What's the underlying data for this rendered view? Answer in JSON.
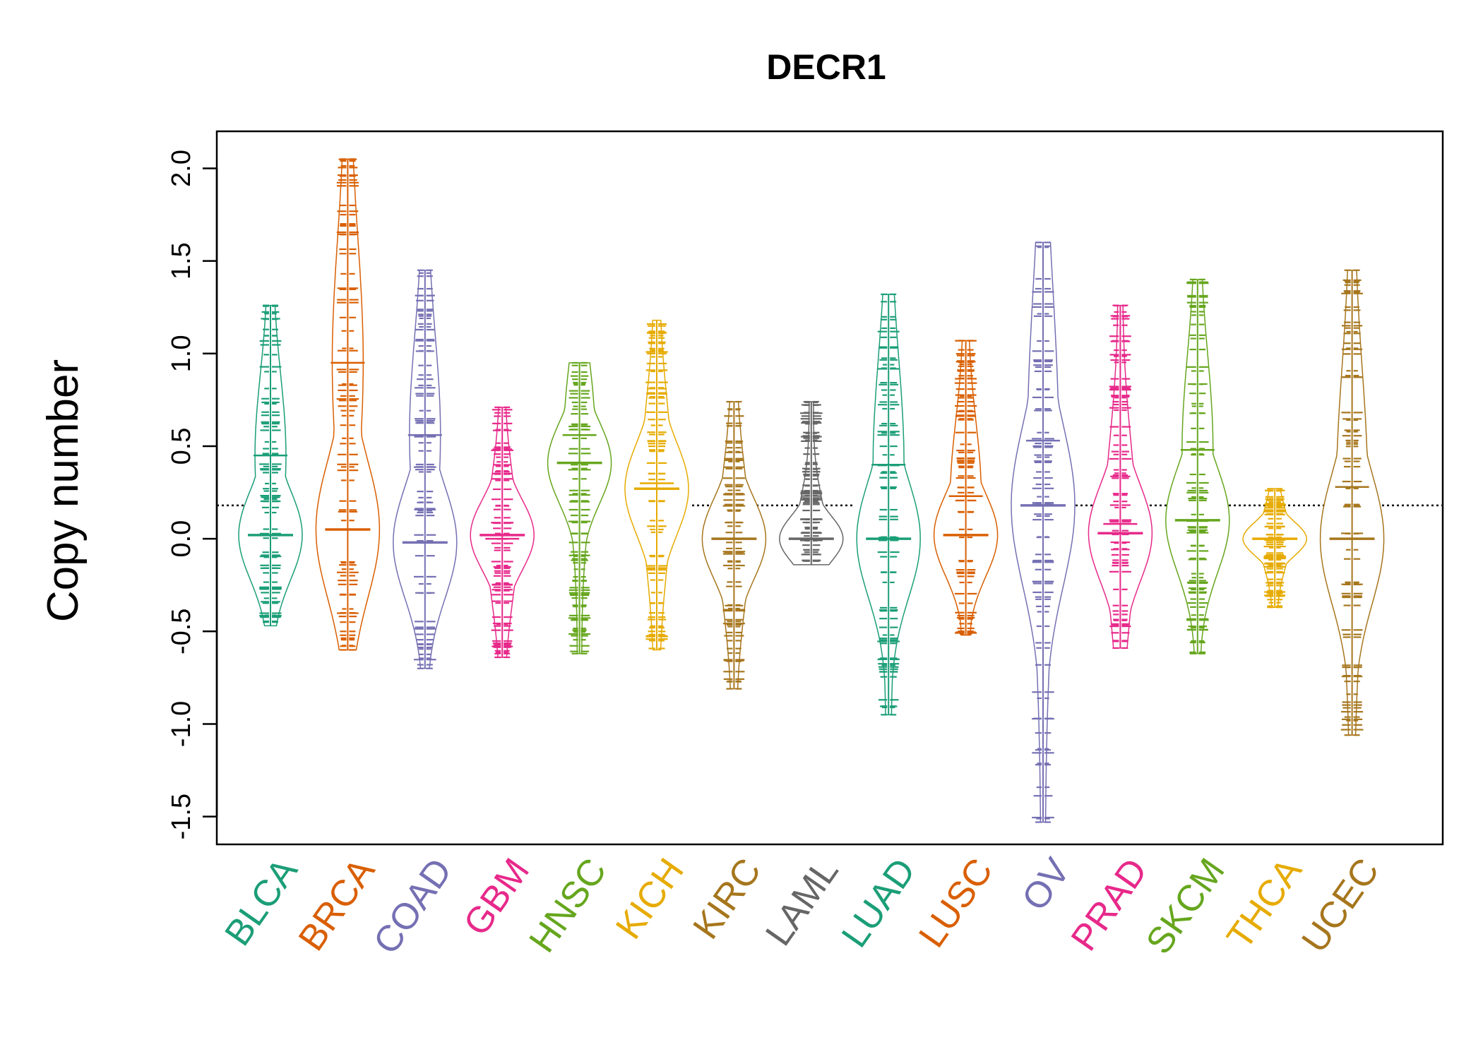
{
  "chart_data": {
    "type": "beanplot",
    "title": "DECR1",
    "xlabel": "",
    "ylabel": "Copy number",
    "ylim": [
      -1.65,
      2.2
    ],
    "yticks": [
      -1.5,
      -1.0,
      -0.5,
      0.0,
      0.5,
      1.0,
      1.5,
      2.0
    ],
    "ytick_labels": [
      "-1.5",
      "-1.0",
      "-0.5",
      "0.0",
      "0.5",
      "1.0",
      "1.5",
      "2.0"
    ],
    "reference_line": 0.18,
    "grid": false,
    "legend": "none",
    "categories": [
      {
        "name": "BLCA",
        "color": "#1B9E77",
        "min": -0.47,
        "max": 1.26,
        "median": 0.02,
        "mean": 0.45,
        "outliers": [
          1.26,
          1.13,
          -0.45
        ]
      },
      {
        "name": "BRCA",
        "color": "#D95F02",
        "min": -0.6,
        "max": 2.05,
        "median": 0.05,
        "mean": 0.95,
        "outliers": [
          2.05,
          2.04,
          1.8,
          1.75,
          1.7,
          -0.4,
          -0.45,
          -0.5,
          -0.58,
          -0.6
        ]
      },
      {
        "name": "COAD",
        "color": "#7570B3",
        "min": -0.7,
        "max": 1.45,
        "median": -0.02,
        "mean": 0.56,
        "outliers": [
          1.45,
          1.35,
          -0.68,
          -0.7
        ]
      },
      {
        "name": "GBM",
        "color": "#E7298A",
        "min": -0.64,
        "max": 0.71,
        "median": 0.02,
        "mean": 0.0,
        "outliers": [
          0.71,
          0.68,
          -0.62,
          -0.64
        ]
      },
      {
        "name": "HNSC",
        "color": "#66A61E",
        "min": -0.62,
        "max": 0.95,
        "median": 0.41,
        "mean": 0.56,
        "outliers": [
          0.95,
          0.9,
          -0.32,
          -0.62
        ]
      },
      {
        "name": "KICH",
        "color": "#E6AB02",
        "min": -0.6,
        "max": 1.18,
        "median": 0.27,
        "mean": 0.3,
        "outliers": [
          1.12,
          -0.4,
          -0.48,
          -0.55
        ]
      },
      {
        "name": "KIRC",
        "color": "#A6761D",
        "min": -0.81,
        "max": 0.74,
        "median": 0.0,
        "mean": 0.0,
        "outliers": [
          0.74,
          -0.81
        ]
      },
      {
        "name": "LAML",
        "color": "#666666",
        "min": -0.14,
        "max": 0.74,
        "median": 0.0,
        "mean": 0.0,
        "outliers": [
          0.74
        ]
      },
      {
        "name": "LUAD",
        "color": "#1B9E77",
        "min": -0.95,
        "max": 1.32,
        "median": 0.0,
        "mean": 0.4,
        "outliers": [
          1.32,
          1.28,
          -0.65,
          -0.95
        ]
      },
      {
        "name": "LUSC",
        "color": "#D95F02",
        "min": -0.52,
        "max": 1.07,
        "median": 0.02,
        "mean": 0.23,
        "outliers": [
          1.07,
          1.02,
          -0.5
        ]
      },
      {
        "name": "OV",
        "color": "#7570B3",
        "min": -1.53,
        "max": 1.6,
        "median": 0.18,
        "mean": 0.53,
        "outliers": [
          1.6,
          1.58,
          1.35,
          -1.14,
          -1.22,
          -1.53
        ]
      },
      {
        "name": "PRAD",
        "color": "#E7298A",
        "min": -0.59,
        "max": 1.26,
        "median": 0.03,
        "mean": 0.08,
        "outliers": [
          1.26,
          1.2,
          -0.39,
          -0.55,
          -0.59
        ]
      },
      {
        "name": "SKCM",
        "color": "#66A61E",
        "min": -0.62,
        "max": 1.4,
        "median": 0.1,
        "mean": 0.48,
        "outliers": [
          1.4,
          1.38,
          -0.56,
          -0.62
        ]
      },
      {
        "name": "THCA",
        "color": "#E6AB02",
        "min": -0.37,
        "max": 0.27,
        "median": 0.0,
        "mean": 0.0,
        "outliers": [
          0.27,
          -0.31,
          -0.37
        ]
      },
      {
        "name": "UCEC",
        "color": "#A6761D",
        "min": -1.06,
        "max": 1.45,
        "median": 0.0,
        "mean": 0.28,
        "outliers": [
          1.45,
          1.37,
          -0.77,
          -1.06
        ]
      }
    ]
  }
}
